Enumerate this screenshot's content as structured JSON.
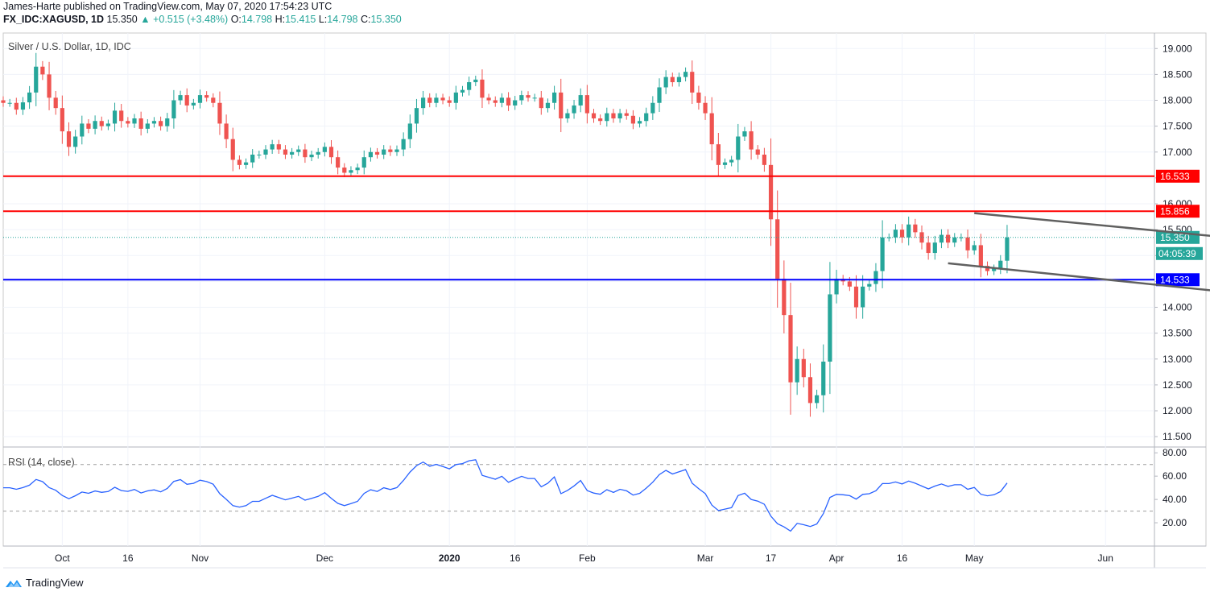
{
  "header": {
    "publish_line": "James-Harte published on TradingView.com, May 07, 2020 17:54:23 UTC",
    "symbol": "FX_IDC:XAGUSD, 1D",
    "last": "15.350",
    "change": "▲ +0.515 (+3.48%)",
    "o_label": "O:",
    "o_value": "14.798",
    "h_label": "H:",
    "h_value": "15.415",
    "l_label": "L:",
    "l_value": "14.798",
    "c_label": "C:",
    "c_value": "15.350"
  },
  "footer": {
    "brand": "TradingView"
  },
  "colors": {
    "up": "#26a69a",
    "down": "#ef5350",
    "resistance": "#ff0000",
    "support": "#0000ff",
    "trendline": "#606060",
    "rsi": "#2962ff"
  },
  "chart_data": [
    {
      "type": "candlestick",
      "title": "Silver / U.S. Dollar, 1D, IDC",
      "ylim": [
        11.3,
        19.3
      ],
      "y_ticks": [
        "11.500",
        "12.000",
        "12.500",
        "13.000",
        "13.500",
        "14.000",
        "14.500",
        "15.000",
        "15.500",
        "16.000",
        "16.500",
        "17.000",
        "17.500",
        "18.000",
        "18.500",
        "19.000"
      ],
      "x_ticks": [
        {
          "label": "Oct",
          "bold": false
        },
        {
          "label": "16",
          "bold": false
        },
        {
          "label": "Nov",
          "bold": false
        },
        {
          "label": "Dec",
          "bold": false
        },
        {
          "label": "2020",
          "bold": true
        },
        {
          "label": "16",
          "bold": false
        },
        {
          "label": "Feb",
          "bold": false
        },
        {
          "label": "Mar",
          "bold": false
        },
        {
          "label": "17",
          "bold": false
        },
        {
          "label": "Apr",
          "bold": false
        },
        {
          "label": "16",
          "bold": false
        },
        {
          "label": "May",
          "bold": false
        },
        {
          "label": "Jun",
          "bold": false
        }
      ],
      "closes": [
        17.95,
        17.95,
        17.82,
        17.96,
        18.15,
        18.65,
        18.5,
        18.05,
        17.85,
        17.4,
        17.1,
        17.3,
        17.55,
        17.45,
        17.6,
        17.5,
        17.55,
        17.8,
        17.6,
        17.55,
        17.65,
        17.45,
        17.55,
        17.6,
        17.5,
        17.65,
        18.0,
        18.1,
        17.9,
        17.95,
        18.1,
        18.05,
        17.95,
        17.55,
        17.25,
        16.85,
        16.75,
        16.8,
        16.95,
        16.95,
        17.05,
        17.15,
        17.05,
        16.95,
        17.0,
        17.05,
        16.9,
        16.95,
        17.0,
        17.1,
        16.9,
        16.7,
        16.6,
        16.65,
        16.7,
        16.9,
        17.0,
        16.95,
        17.05,
        17.0,
        17.05,
        17.25,
        17.55,
        17.85,
        18.05,
        17.95,
        18.05,
        18.0,
        17.95,
        18.15,
        18.2,
        18.35,
        18.4,
        18.05,
        18.0,
        17.95,
        18.05,
        17.9,
        18.0,
        18.1,
        18.05,
        18.05,
        17.85,
        17.95,
        18.15,
        17.65,
        17.75,
        17.9,
        18.1,
        17.75,
        17.65,
        17.6,
        17.75,
        17.65,
        17.75,
        17.7,
        17.55,
        17.6,
        17.75,
        17.95,
        18.25,
        18.45,
        18.35,
        18.45,
        18.55,
        18.15,
        17.95,
        17.75,
        17.15,
        16.75,
        16.8,
        16.85,
        17.3,
        17.4,
        17.05,
        16.95,
        16.75,
        15.7,
        14.55,
        13.85,
        12.55,
        13.0,
        12.65,
        12.15,
        12.3,
        12.95,
        14.25,
        14.55,
        14.5,
        14.4,
        14.0,
        14.4,
        14.45,
        14.7,
        15.35,
        15.35,
        15.5,
        15.35,
        15.6,
        15.45,
        15.25,
        15.05,
        15.25,
        15.4,
        15.25,
        15.35,
        15.35,
        15.1,
        15.2,
        14.8,
        14.7,
        14.75,
        14.9,
        15.35
      ],
      "support_resistance": [
        {
          "label": "16.533",
          "value": 16.533,
          "color": "#ff0000"
        },
        {
          "label": "15.856",
          "value": 15.856,
          "color": "#ff0000"
        },
        {
          "label": "14.533",
          "value": 14.533,
          "color": "#0000ff"
        }
      ],
      "trendlines": [
        {
          "from": {
            "bar": 148,
            "value": 15.82
          },
          "to": {
            "bar": 207,
            "value": 15.1
          }
        },
        {
          "from": {
            "bar": 144,
            "value": 14.85
          },
          "to": {
            "bar": 200,
            "value": 14.12
          }
        }
      ],
      "price_label": "15.350",
      "countdown_label": "04:05:39"
    },
    {
      "type": "line",
      "title": "RSI (14, close)",
      "ylim": [
        0,
        85
      ],
      "y_ticks": [
        "20.00",
        "40.00",
        "60.00",
        "80.00"
      ],
      "levels": [
        30,
        70
      ]
    }
  ]
}
